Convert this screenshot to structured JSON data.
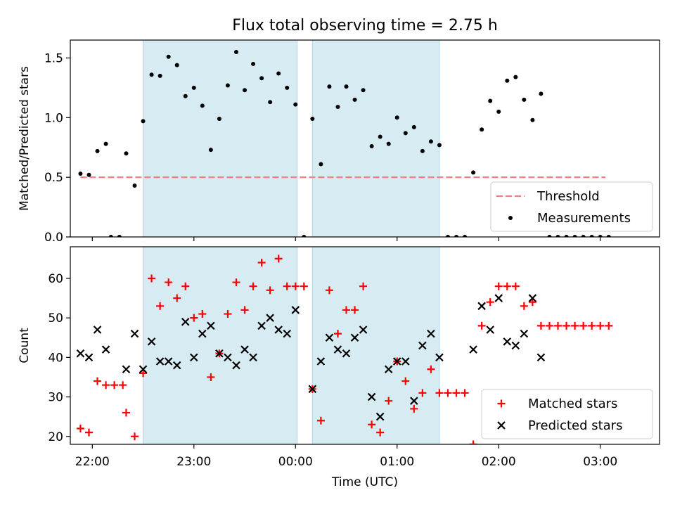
{
  "title": "Flux total observing time = 2.75 h",
  "colors": {
    "shade": "#add8e6",
    "threshold": "#f08080",
    "measurements": "#000000",
    "matched": "#ff0000",
    "predicted": "#000000"
  },
  "chart_data": [
    {
      "type": "scatter",
      "ylabel": "Matched/Predicted stars",
      "xlabel": "",
      "xlim": [
        "21:47",
        "03:35"
      ],
      "ylim": [
        0,
        1.65
      ],
      "yticks": [
        "0.0",
        "0.5",
        "1.0",
        "1.5"
      ],
      "shaded_intervals": [
        [
          "22:30",
          "00:01"
        ],
        [
          "00:10",
          "01:25"
        ]
      ],
      "legend": {
        "position": "lower-right",
        "entries": [
          "Threshold",
          "Measurements"
        ]
      },
      "threshold": {
        "name": "Threshold",
        "y": 0.5,
        "x": [
          "21:53",
          "03:03"
        ]
      },
      "series": [
        {
          "name": "Measurements",
          "points": [
            [
              "21:53",
              0.53
            ],
            [
              "21:58",
              0.52
            ],
            [
              "22:03",
              0.72
            ],
            [
              "22:08",
              0.78
            ],
            [
              "22:11",
              0
            ],
            [
              "22:16",
              0
            ],
            [
              "22:20",
              0.7
            ],
            [
              "22:25",
              0.43
            ],
            [
              "22:30",
              0.97
            ],
            [
              "22:35",
              1.36
            ],
            [
              "22:40",
              1.35
            ],
            [
              "22:45",
              1.51
            ],
            [
              "22:50",
              1.44
            ],
            [
              "22:55",
              1.18
            ],
            [
              "23:00",
              1.25
            ],
            [
              "23:05",
              1.1
            ],
            [
              "23:10",
              0.73
            ],
            [
              "23:15",
              0.99
            ],
            [
              "23:20",
              1.27
            ],
            [
              "23:25",
              1.55
            ],
            [
              "23:30",
              1.23
            ],
            [
              "23:35",
              1.45
            ],
            [
              "23:40",
              1.33
            ],
            [
              "23:45",
              1.13
            ],
            [
              "23:50",
              1.37
            ],
            [
              "23:55",
              1.25
            ],
            [
              "00:00",
              1.11
            ],
            [
              "00:05",
              0
            ],
            [
              "00:10",
              0.99
            ],
            [
              "00:15",
              0.61
            ],
            [
              "00:20",
              1.26
            ],
            [
              "00:25",
              1.09
            ],
            [
              "00:30",
              1.26
            ],
            [
              "00:35",
              1.15
            ],
            [
              "00:40",
              1.23
            ],
            [
              "00:45",
              0.76
            ],
            [
              "00:50",
              0.84
            ],
            [
              "00:55",
              0.78
            ],
            [
              "01:00",
              1.0
            ],
            [
              "01:05",
              0.87
            ],
            [
              "01:10",
              0.92
            ],
            [
              "01:15",
              0.72
            ],
            [
              "01:20",
              0.8
            ],
            [
              "01:25",
              0.77
            ],
            [
              "01:30",
              0
            ],
            [
              "01:35",
              0
            ],
            [
              "01:40",
              0
            ],
            [
              "01:45",
              0.54
            ],
            [
              "01:50",
              0.9
            ],
            [
              "01:55",
              1.14
            ],
            [
              "02:00",
              1.05
            ],
            [
              "02:05",
              1.31
            ],
            [
              "02:10",
              1.34
            ],
            [
              "02:15",
              1.15
            ],
            [
              "02:20",
              0.98
            ],
            [
              "02:25",
              1.2
            ],
            [
              "02:30",
              0
            ],
            [
              "02:35",
              0
            ],
            [
              "02:40",
              0
            ],
            [
              "02:45",
              0
            ],
            [
              "02:50",
              0
            ],
            [
              "02:55",
              0
            ],
            [
              "03:00",
              0
            ],
            [
              "03:05",
              0
            ]
          ]
        }
      ]
    },
    {
      "type": "scatter",
      "ylabel": "Count",
      "xlabel": "Time (UTC)",
      "xlim": [
        "21:47",
        "03:35"
      ],
      "ylim": [
        18,
        68
      ],
      "xticks": [
        "22:00",
        "23:00",
        "00:00",
        "01:00",
        "02:00",
        "03:00"
      ],
      "yticks": [
        "20",
        "30",
        "40",
        "50",
        "60"
      ],
      "shaded_intervals": [
        [
          "22:30",
          "00:01"
        ],
        [
          "00:10",
          "01:25"
        ]
      ],
      "legend": {
        "position": "lower-right",
        "entries": [
          "Matched stars",
          "Predicted stars"
        ]
      },
      "series": [
        {
          "name": "Matched stars",
          "points": [
            [
              "21:53",
              22
            ],
            [
              "21:58",
              21
            ],
            [
              "22:03",
              34
            ],
            [
              "22:08",
              33
            ],
            [
              "22:13",
              33
            ],
            [
              "22:18",
              33
            ],
            [
              "22:20",
              26
            ],
            [
              "22:25",
              20
            ],
            [
              "22:30",
              36
            ],
            [
              "22:35",
              60
            ],
            [
              "22:40",
              53
            ],
            [
              "22:45",
              59
            ],
            [
              "22:50",
              55
            ],
            [
              "22:55",
              58
            ],
            [
              "23:00",
              50
            ],
            [
              "23:05",
              51
            ],
            [
              "23:10",
              35
            ],
            [
              "23:15",
              41
            ],
            [
              "23:20",
              51
            ],
            [
              "23:25",
              59
            ],
            [
              "23:30",
              52
            ],
            [
              "23:35",
              58
            ],
            [
              "23:40",
              64
            ],
            [
              "23:45",
              57
            ],
            [
              "23:50",
              65
            ],
            [
              "23:55",
              58
            ],
            [
              "00:00",
              58
            ],
            [
              "00:05",
              58
            ],
            [
              "00:10",
              32
            ],
            [
              "00:15",
              24
            ],
            [
              "00:20",
              57
            ],
            [
              "00:25",
              46
            ],
            [
              "00:30",
              52
            ],
            [
              "00:35",
              52
            ],
            [
              "00:40",
              58
            ],
            [
              "00:45",
              23
            ],
            [
              "00:50",
              21
            ],
            [
              "00:55",
              29
            ],
            [
              "01:00",
              39
            ],
            [
              "01:05",
              34
            ],
            [
              "01:10",
              27
            ],
            [
              "01:15",
              31
            ],
            [
              "01:20",
              37
            ],
            [
              "01:25",
              31
            ],
            [
              "01:30",
              31
            ],
            [
              "01:35",
              31
            ],
            [
              "01:40",
              31
            ],
            [
              "01:45",
              18
            ],
            [
              "01:50",
              48
            ],
            [
              "01:55",
              54
            ],
            [
              "02:00",
              58
            ],
            [
              "02:05",
              58
            ],
            [
              "02:10",
              58
            ],
            [
              "02:15",
              53
            ],
            [
              "02:20",
              54
            ],
            [
              "02:25",
              48
            ],
            [
              "02:30",
              48
            ],
            [
              "02:35",
              48
            ],
            [
              "02:40",
              48
            ],
            [
              "02:45",
              48
            ],
            [
              "02:50",
              48
            ],
            [
              "02:55",
              48
            ],
            [
              "03:00",
              48
            ],
            [
              "03:05",
              48
            ]
          ]
        },
        {
          "name": "Predicted stars",
          "points": [
            [
              "21:53",
              41
            ],
            [
              "21:58",
              40
            ],
            [
              "22:03",
              47
            ],
            [
              "22:08",
              42
            ],
            [
              "22:20",
              37
            ],
            [
              "22:25",
              46
            ],
            [
              "22:30",
              37
            ],
            [
              "22:35",
              44
            ],
            [
              "22:40",
              39
            ],
            [
              "22:45",
              39
            ],
            [
              "22:50",
              38
            ],
            [
              "22:55",
              49
            ],
            [
              "23:00",
              40
            ],
            [
              "23:05",
              46
            ],
            [
              "23:10",
              48
            ],
            [
              "23:15",
              41
            ],
            [
              "23:20",
              40
            ],
            [
              "23:25",
              38
            ],
            [
              "23:30",
              42
            ],
            [
              "23:35",
              40
            ],
            [
              "23:40",
              48
            ],
            [
              "23:45",
              50
            ],
            [
              "23:50",
              47
            ],
            [
              "23:55",
              46
            ],
            [
              "00:00",
              52
            ],
            [
              "00:10",
              32
            ],
            [
              "00:15",
              39
            ],
            [
              "00:20",
              45
            ],
            [
              "00:25",
              42
            ],
            [
              "00:30",
              41
            ],
            [
              "00:35",
              45
            ],
            [
              "00:40",
              47
            ],
            [
              "00:45",
              30
            ],
            [
              "00:50",
              25
            ],
            [
              "00:55",
              37
            ],
            [
              "01:00",
              39
            ],
            [
              "01:05",
              39
            ],
            [
              "01:10",
              29
            ],
            [
              "01:15",
              43
            ],
            [
              "01:20",
              46
            ],
            [
              "01:25",
              40
            ],
            [
              "01:45",
              42
            ],
            [
              "01:50",
              53
            ],
            [
              "01:55",
              47
            ],
            [
              "02:00",
              55
            ],
            [
              "02:05",
              44
            ],
            [
              "02:10",
              43
            ],
            [
              "02:15",
              46
            ],
            [
              "02:20",
              55
            ],
            [
              "02:25",
              40
            ]
          ]
        }
      ]
    }
  ]
}
